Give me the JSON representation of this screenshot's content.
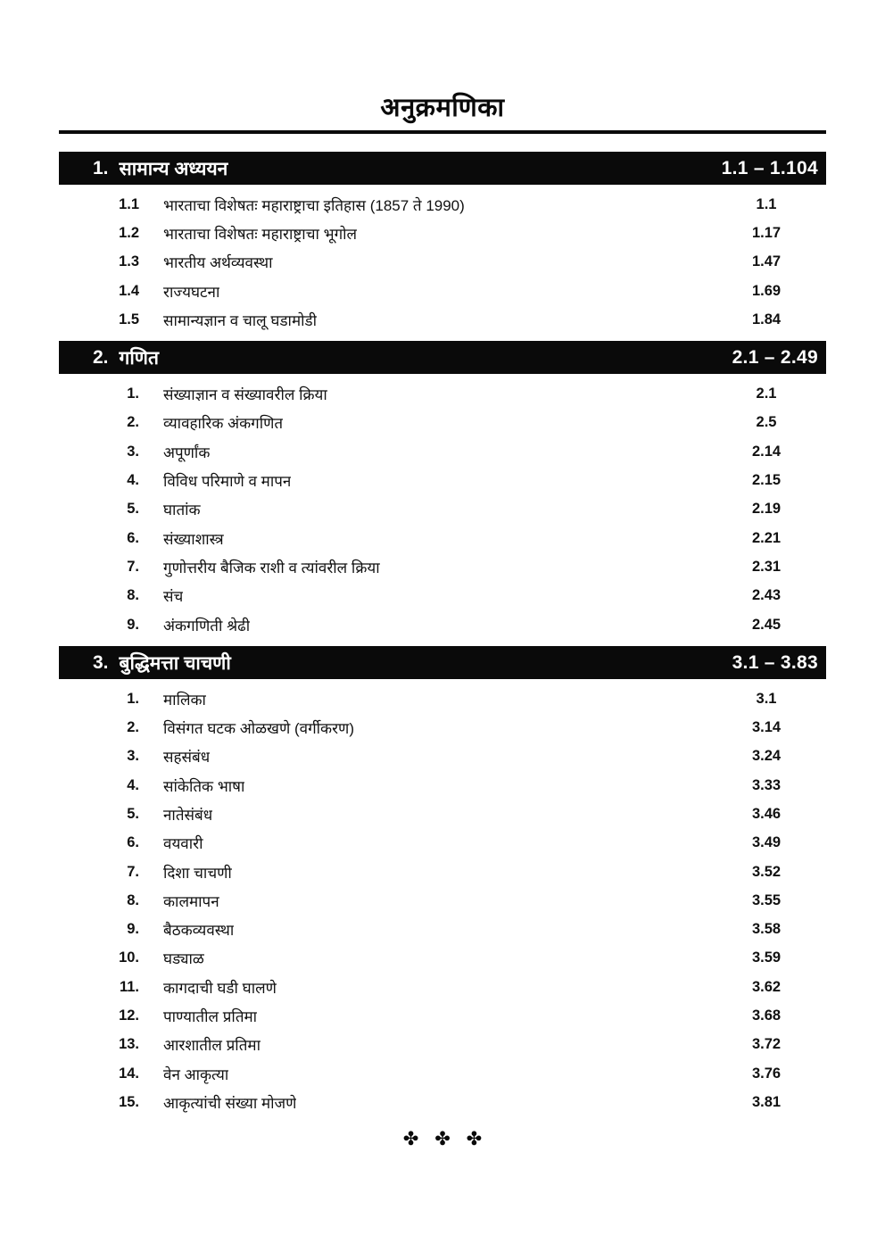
{
  "page": {
    "title": "अनुक्रमणिका",
    "footer_ornament": "✤ ✤ ✤"
  },
  "colors": {
    "bar_background": "#0a0a0a",
    "bar_text": "#ffffff",
    "body_text": "#111111"
  },
  "sections": [
    {
      "number": "1.",
      "title": "सामान्य अध्ययन",
      "range": "1.1 – 1.104",
      "items": [
        {
          "no": "1.1",
          "title": "भारताचा विशेषतः महाराष्ट्राचा इतिहास (1857 ते 1990)",
          "page": "1.1"
        },
        {
          "no": "1.2",
          "title": "भारताचा विशेषतः महाराष्ट्राचा भूगोल",
          "page": "1.17"
        },
        {
          "no": "1.3",
          "title": "भारतीय अर्थव्यवस्था",
          "page": "1.47"
        },
        {
          "no": "1.4",
          "title": "राज्यघटना",
          "page": "1.69"
        },
        {
          "no": "1.5",
          "title": "सामान्यज्ञान व चालू घडामोडी",
          "page": "1.84"
        }
      ]
    },
    {
      "number": "2.",
      "title": "गणित",
      "range": "2.1 – 2.49",
      "items": [
        {
          "no": "1.",
          "title": "संख्याज्ञान व संख्यावरील क्रिया",
          "page": "2.1"
        },
        {
          "no": "2.",
          "title": "व्यावहारिक अंकगणित",
          "page": "2.5"
        },
        {
          "no": "3.",
          "title": "अपूर्णांक",
          "page": "2.14"
        },
        {
          "no": "4.",
          "title": "विविध परिमाणे व मापन",
          "page": "2.15"
        },
        {
          "no": "5.",
          "title": "घातांक",
          "page": "2.19"
        },
        {
          "no": "6.",
          "title": "संख्याशास्त्र",
          "page": "2.21"
        },
        {
          "no": "7.",
          "title": "गुणोत्तरीय बैजिक राशी व त्यांवरील क्रिया",
          "page": "2.31"
        },
        {
          "no": "8.",
          "title": "संच",
          "page": "2.43"
        },
        {
          "no": "9.",
          "title": "अंकगणिती श्रेढी",
          "page": "2.45"
        }
      ]
    },
    {
      "number": "3.",
      "title": "बुद्धिमत्ता चाचणी",
      "range": "3.1 – 3.83",
      "items": [
        {
          "no": "1.",
          "title": "मालिका",
          "page": "3.1"
        },
        {
          "no": "2.",
          "title": "विसंगत घटक ओळखणे (वर्गीकरण)",
          "page": "3.14"
        },
        {
          "no": "3.",
          "title": "सहसंबंध",
          "page": "3.24"
        },
        {
          "no": "4.",
          "title": "सांकेतिक भाषा",
          "page": "3.33"
        },
        {
          "no": "5.",
          "title": "नातेसंबंध",
          "page": "3.46"
        },
        {
          "no": "6.",
          "title": "वयवारी",
          "page": "3.49"
        },
        {
          "no": "7.",
          "title": "दिशा चाचणी",
          "page": "3.52"
        },
        {
          "no": "8.",
          "title": "कालमापन",
          "page": "3.55"
        },
        {
          "no": "9.",
          "title": "बैठकव्यवस्था",
          "page": "3.58"
        },
        {
          "no": "10.",
          "title": "घड्याळ",
          "page": "3.59"
        },
        {
          "no": "11.",
          "title": "कागदाची घडी घालणे",
          "page": "3.62"
        },
        {
          "no": "12.",
          "title": "पाण्यातील प्रतिमा",
          "page": "3.68"
        },
        {
          "no": "13.",
          "title": "आरशातील प्रतिमा",
          "page": "3.72"
        },
        {
          "no": "14.",
          "title": "वेन आकृत्या",
          "page": "3.76"
        },
        {
          "no": "15.",
          "title": "आकृत्यांची संख्या मोजणे",
          "page": "3.81"
        }
      ]
    }
  ]
}
